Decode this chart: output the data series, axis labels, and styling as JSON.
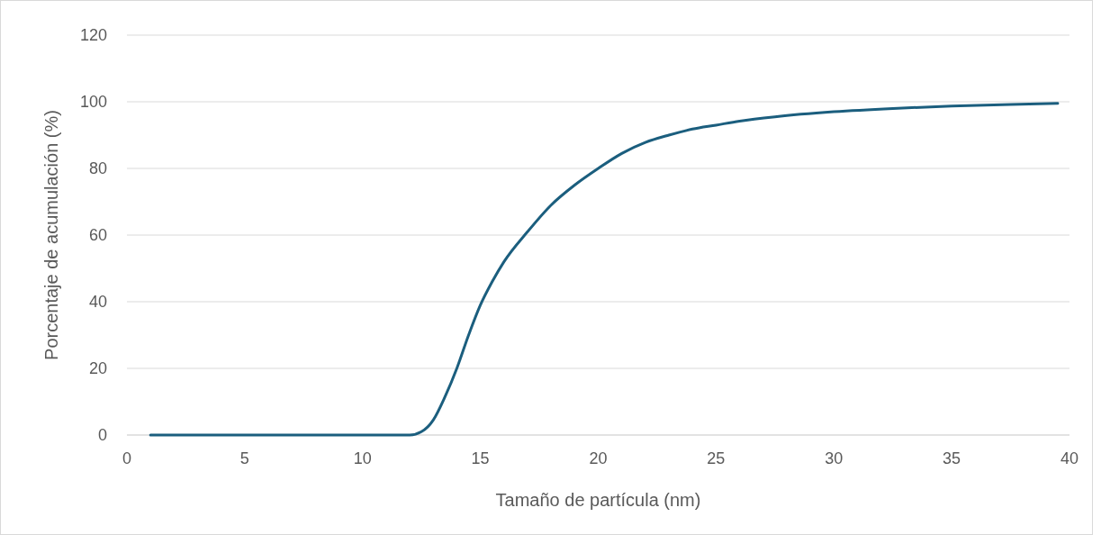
{
  "chart_data": {
    "type": "line",
    "xlabel": "Tamaño de partícula (nm)",
    "ylabel": "Porcentaje de acumulación (%)",
    "xlim": [
      0,
      40
    ],
    "xticks": [
      0,
      5,
      10,
      15,
      20,
      25,
      30,
      35,
      40
    ],
    "ylim": [
      0,
      120
    ],
    "yticks": [
      0,
      20,
      40,
      60,
      80,
      100,
      120
    ],
    "grid": "y",
    "marker": "none",
    "line_style": "solid",
    "series": [
      {
        "color": "#1b5e7e",
        "x": [
          1,
          3,
          5,
          7,
          9,
          10,
          11,
          11.5,
          12,
          12.5,
          13,
          13.5,
          14,
          14.5,
          15,
          15.5,
          16,
          17,
          18,
          19,
          20,
          21,
          22,
          23,
          24,
          25,
          26,
          27.5,
          30,
          32.5,
          35,
          37.5,
          39.5
        ],
        "values": [
          0,
          0,
          0,
          0,
          0,
          0,
          0,
          0,
          0,
          1,
          4.5,
          11.5,
          20,
          30,
          39,
          46,
          52,
          61,
          69,
          75,
          80,
          84.5,
          87.8,
          90,
          91.8,
          93,
          94.2,
          95.5,
          97,
          98,
          98.7,
          99.2,
          99.5
        ]
      }
    ]
  }
}
